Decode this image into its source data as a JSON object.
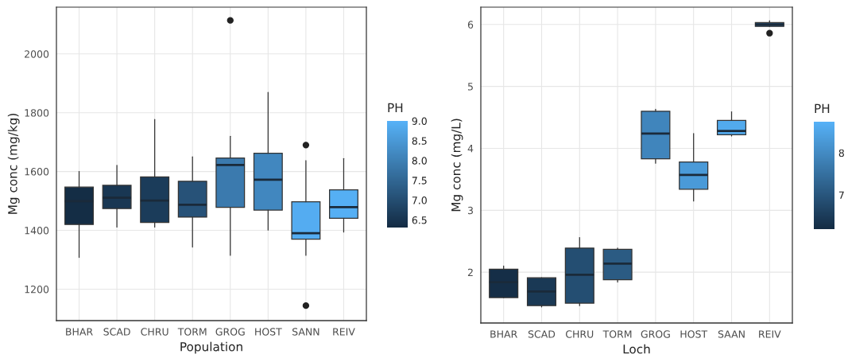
{
  "chart_data": [
    {
      "type": "box",
      "xlabel": "Population",
      "ylabel": "Mg conc (mg/kg)",
      "clabel": "PH",
      "categories": [
        "BHAR",
        "SCAD",
        "CHRU",
        "TORM",
        "GROG",
        "HOST",
        "SANN",
        "REIV"
      ],
      "boxes": [
        {
          "low": 1308,
          "q1": 1420,
          "median": 1499,
          "q3": 1547,
          "high": 1600
        },
        {
          "low": 1411,
          "q1": 1474,
          "median": 1511,
          "q3": 1553,
          "high": 1621
        },
        {
          "low": 1411,
          "q1": 1427,
          "median": 1501,
          "q3": 1582,
          "high": 1777
        },
        {
          "low": 1343,
          "q1": 1445,
          "median": 1487,
          "q3": 1567,
          "high": 1650
        },
        {
          "low": 1315,
          "q1": 1478,
          "median": 1622,
          "q3": 1646,
          "high": 1720,
          "outliers": [
            2114
          ]
        },
        {
          "low": 1401,
          "q1": 1469,
          "median": 1572,
          "q3": 1662,
          "high": 1869
        },
        {
          "low": 1315,
          "q1": 1370,
          "median": 1390,
          "q3": 1497,
          "high": 1637,
          "outliers": [
            1690,
            1144
          ]
        },
        {
          "low": 1394,
          "q1": 1441,
          "median": 1479,
          "q3": 1538,
          "high": 1644
        }
      ],
      "cvalues": [
        6.35,
        6.55,
        6.65,
        7.1,
        7.9,
        8.15,
        8.9,
        8.95
      ],
      "clim": [
        6.31,
        9.0
      ],
      "cticks": [
        {
          "value": 6.5,
          "label": "6.5"
        },
        {
          "value": 7.0,
          "label": "7.0"
        },
        {
          "value": 7.5,
          "label": "7.5"
        },
        {
          "value": 8.0,
          "label": "8.0"
        },
        {
          "value": 8.5,
          "label": "8.5"
        },
        {
          "value": 9.0,
          "label": "9.0"
        }
      ],
      "ylim": [
        1093,
        2159
      ],
      "yticks": [
        1200,
        1400,
        1600,
        1800,
        2000
      ],
      "grid": true
    },
    {
      "type": "box",
      "xlabel": "Loch",
      "ylabel": "Mg conc (mg/L)",
      "clabel": "PH",
      "categories": [
        "BHAR",
        "SCAD",
        "CHRU",
        "TORM",
        "GROG",
        "HOST",
        "SAAN",
        "REIV"
      ],
      "boxes": [
        {
          "low": 1.59,
          "q1": 1.59,
          "median": 1.84,
          "q3": 2.05,
          "high": 2.1
        },
        {
          "low": 1.44,
          "q1": 1.46,
          "median": 1.69,
          "q3": 1.91,
          "high": 1.91
        },
        {
          "low": 1.46,
          "q1": 1.5,
          "median": 1.96,
          "q3": 2.39,
          "high": 2.56
        },
        {
          "low": 1.84,
          "q1": 1.88,
          "median": 2.14,
          "q3": 2.37,
          "high": 2.39
        },
        {
          "low": 3.76,
          "q1": 3.83,
          "median": 4.24,
          "q3": 4.6,
          "high": 4.63
        },
        {
          "low": 3.15,
          "q1": 3.34,
          "median": 3.57,
          "q3": 3.78,
          "high": 4.24
        },
        {
          "low": 4.2,
          "q1": 4.22,
          "median": 4.28,
          "q3": 4.45,
          "high": 4.59
        },
        {
          "low": 5.97,
          "q1": 5.97,
          "median": 6.0,
          "q3": 6.03,
          "high": 6.06,
          "outliers": [
            5.86
          ]
        }
      ],
      "cvalues": [
        6.25,
        6.45,
        6.85,
        7.1,
        7.9,
        8.3,
        8.6,
        6.95
      ],
      "clim": [
        6.19,
        8.74
      ],
      "cticks": [
        7,
        8
      ],
      "ylim": [
        1.18,
        6.28
      ],
      "yticks": [
        2,
        3,
        4,
        5,
        6
      ],
      "grid": true
    }
  ]
}
